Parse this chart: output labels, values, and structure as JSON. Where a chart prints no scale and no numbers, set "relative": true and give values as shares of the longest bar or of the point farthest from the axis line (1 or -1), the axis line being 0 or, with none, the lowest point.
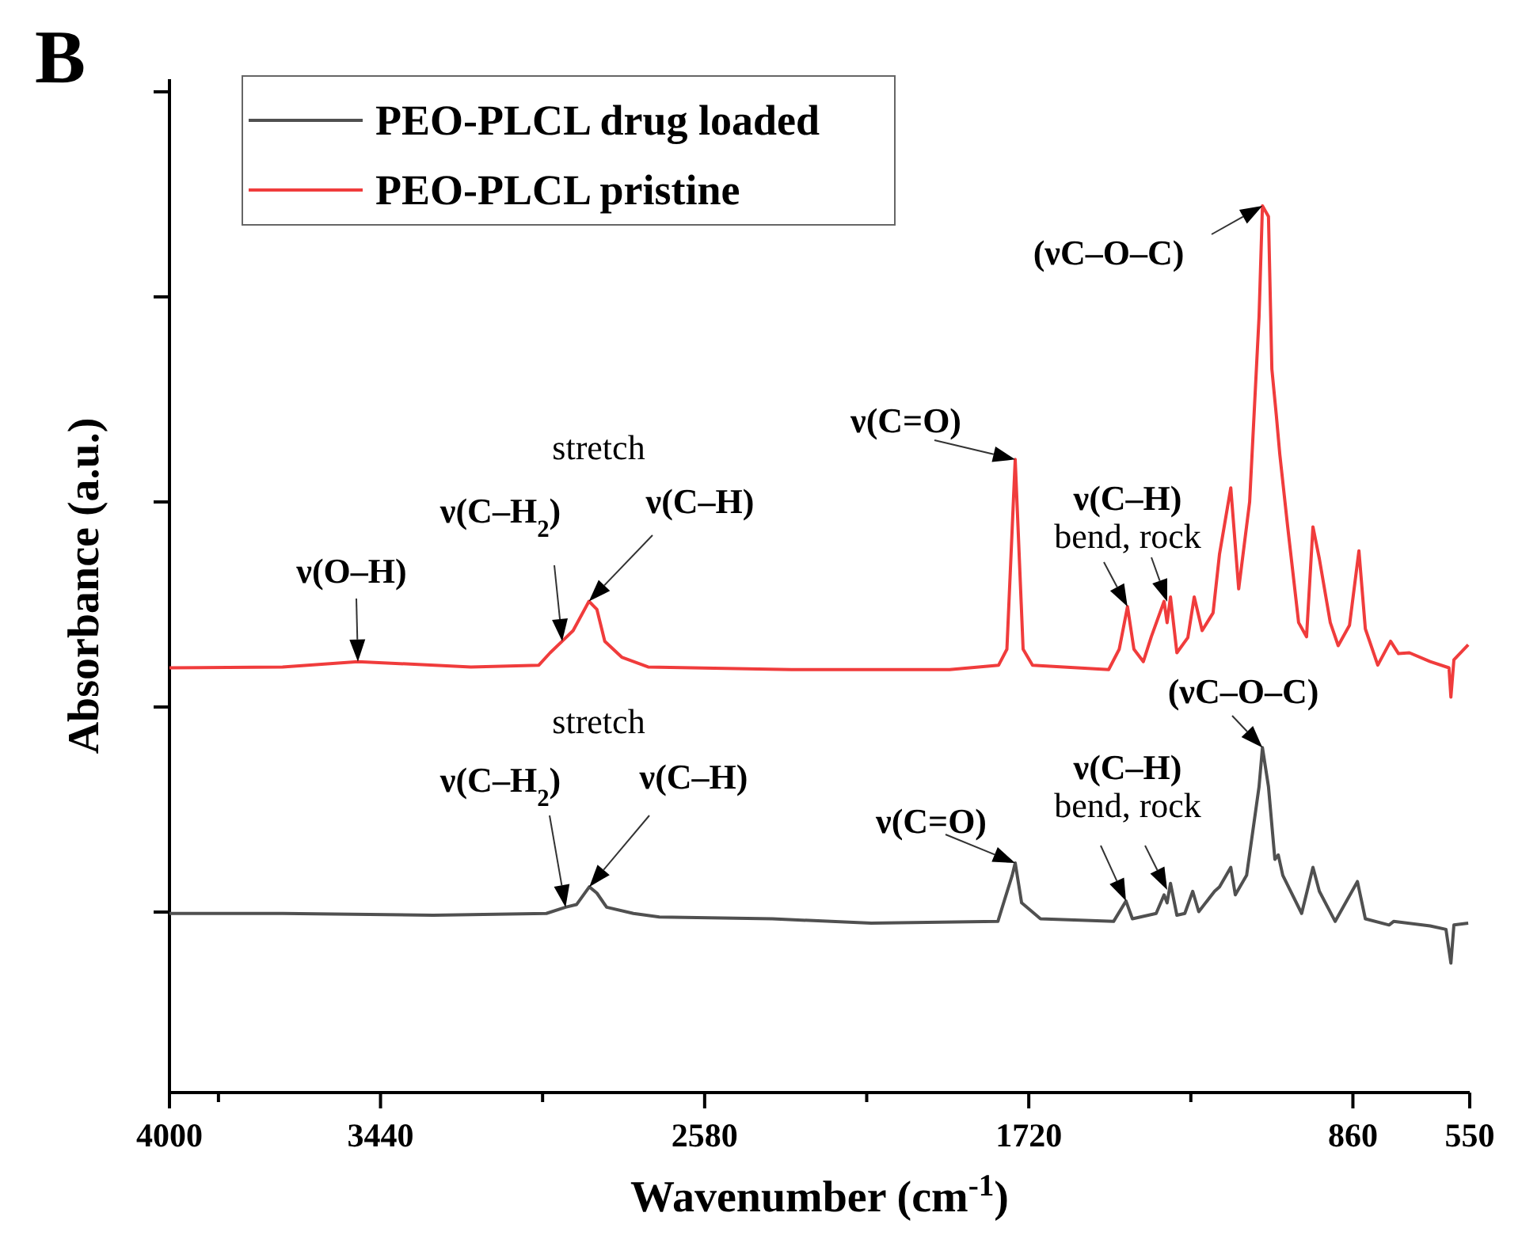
{
  "chart_data": {
    "type": "line",
    "title": "B",
    "xlabel": "Wavenumber (cm$^{-1}$)",
    "ylabel": "Absorbance (a.u.)",
    "relative": true,
    "legend": "top left",
    "xlim": [
      4000,
      550
    ],
    "xticks": [
      4000,
      {
        "value": 3870,
        "label": null
      },
      3440,
      {
        "value": 3010,
        "label": null
      },
      2580,
      {
        "value": 2150,
        "label": null
      },
      1720,
      {
        "value": 1290,
        "label": null
      },
      860,
      550
    ],
    "series": [
      {
        "name": "PEO-PLCL drug loaded",
        "color": "#505050",
        "x": [
          4000,
          3700,
          3300,
          3000,
          2949,
          2920,
          2886,
          2866,
          2840,
          2769,
          2700,
          2400,
          2138,
          1802,
          1764,
          1756,
          1739,
          1689,
          1495,
          1462,
          1445,
          1382,
          1361,
          1353,
          1344,
          1327,
          1306,
          1285,
          1269,
          1227,
          1214,
          1184,
          1172,
          1142,
          1109,
          1100,
          1084,
          1067,
          1058,
          1046,
          996,
          966,
          949,
          907,
          848,
          827,
          764,
          752,
          655,
          613,
          600,
          592,
          554
        ],
        "values": [
          0.202,
          0.202,
          0.2,
          0.202,
          0.209,
          0.212,
          0.232,
          0.225,
          0.209,
          0.202,
          0.198,
          0.196,
          0.191,
          0.193,
          0.245,
          0.259,
          0.214,
          0.196,
          0.193,
          0.216,
          0.196,
          0.202,
          0.223,
          0.214,
          0.236,
          0.2,
          0.202,
          0.227,
          0.204,
          0.227,
          0.232,
          0.254,
          0.223,
          0.245,
          0.345,
          0.389,
          0.345,
          0.263,
          0.268,
          0.245,
          0.202,
          0.254,
          0.227,
          0.193,
          0.238,
          0.196,
          0.189,
          0.193,
          0.188,
          0.184,
          0.146,
          0.189,
          0.191
        ]
      },
      {
        "name": "PEO-PLCL pristine",
        "color": "#f03c3c",
        "x": [
          4000,
          3700,
          3500,
          3200,
          3020,
          2990,
          2958,
          2929,
          2887,
          2866,
          2845,
          2800,
          2730,
          2350,
          1930,
          1800,
          1778,
          1756,
          1735,
          1710,
          1508,
          1480,
          1458,
          1441,
          1416,
          1395,
          1361,
          1353,
          1344,
          1327,
          1298,
          1281,
          1260,
          1231,
          1214,
          1184,
          1163,
          1134,
          1109,
          1100,
          1084,
          1075,
          1063,
          1054,
          1033,
          1004,
          983,
          966,
          949,
          920,
          899,
          869,
          844,
          827,
          794,
          760,
          739,
          710,
          655,
          605,
          600,
          592,
          554
        ],
        "values": [
          0.479,
          0.48,
          0.486,
          0.48,
          0.482,
          0.496,
          0.509,
          0.521,
          0.554,
          0.545,
          0.509,
          0.491,
          0.48,
          0.477,
          0.477,
          0.482,
          0.5,
          0.714,
          0.5,
          0.482,
          0.477,
          0.5,
          0.548,
          0.5,
          0.486,
          0.514,
          0.554,
          0.53,
          0.559,
          0.496,
          0.513,
          0.559,
          0.521,
          0.541,
          0.607,
          0.682,
          0.568,
          0.666,
          0.875,
          1,
          0.988,
          0.816,
          0.763,
          0.72,
          0.638,
          0.53,
          0.514,
          0.638,
          0.602,
          0.53,
          0.504,
          0.527,
          0.611,
          0.523,
          0.482,
          0.509,
          0.495,
          0.496,
          0.486,
          0.479,
          0.446,
          0.488,
          0.505
        ]
      }
    ],
    "annotations": [
      {
        "text": "ν(O–H)",
        "x": 3500,
        "y": 0.486
      },
      {
        "text": "ν(C–H$_{2}$)",
        "x": 2958,
        "y": 0.509
      },
      {
        "text": "ν(C–H)",
        "x": 2887,
        "y": 0.554
      },
      "stretch",
      {
        "text": "ν(C=O)",
        "x": 1756,
        "y": 0.714
      },
      {
        "text": "ν(C–H)\nbend, rock",
        "x": 1458,
        "y": 0.548
      },
      {
        "text": "(νC–O–C)",
        "x": 1100,
        "y": 1
      },
      {
        "text": "ν(C–H$_{2}$)",
        "x": 2949,
        "y": 0.209
      },
      {
        "text": "ν(C–H)",
        "x": 2886,
        "y": 0.232
      },
      "stretch",
      {
        "text": "ν(C=O)",
        "x": 1756,
        "y": 0.259
      },
      {
        "text": "ν(C–H)\nbend, rock",
        "x": 1462,
        "y": 0.216
      },
      {
        "text": "(νC–O–C)",
        "x": 1100,
        "y": 0.389
      }
    ]
  }
}
